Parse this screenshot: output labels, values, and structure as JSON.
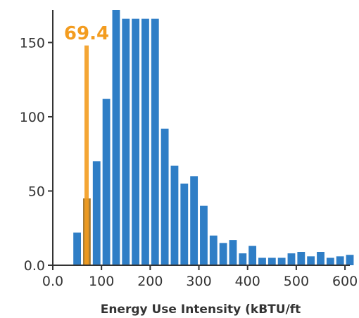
{
  "chart_data": {
    "type": "bar",
    "title": "",
    "xlabel": "Energy Use Intensity (kBTU/ft",
    "ylabel": "",
    "xlim": [
      0,
      610
    ],
    "ylim": [
      0,
      172
    ],
    "bin_width": 20,
    "bin_starts": [
      40,
      60,
      80,
      100,
      120,
      140,
      160,
      180,
      200,
      220,
      240,
      260,
      280,
      300,
      320,
      340,
      360,
      380,
      400,
      420,
      440,
      460,
      480,
      500,
      520,
      540,
      560,
      580,
      600
    ],
    "values": [
      22,
      45,
      70,
      112,
      172,
      166,
      166,
      166,
      166,
      92,
      67,
      55,
      60,
      40,
      20,
      15,
      17,
      8,
      13,
      5,
      5,
      5,
      8,
      9,
      6,
      9,
      5,
      6,
      7
    ],
    "x_ticks": [
      "0.0",
      "100",
      "200",
      "300",
      "400",
      "500",
      "600"
    ],
    "x_tick_values": [
      0,
      100,
      200,
      300,
      400,
      500,
      600
    ],
    "y_ticks": [
      "0.0",
      "50",
      "100",
      "150"
    ],
    "y_tick_values": [
      0,
      50,
      100,
      150
    ],
    "grid": false,
    "legend": "none",
    "marker": {
      "value": 69.4,
      "label": "69.4",
      "bin_start": 60
    },
    "colors": {
      "bar": "#2f7ec6",
      "marker": "#f39c1f",
      "marked_bar": "#a67c36",
      "axis": "#333333"
    }
  }
}
